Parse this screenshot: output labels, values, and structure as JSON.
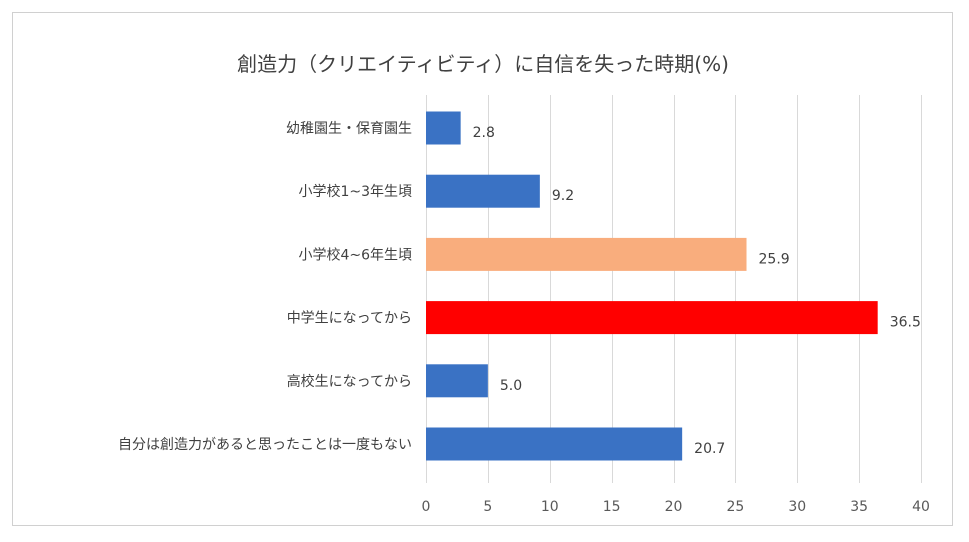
{
  "chart_data": {
    "type": "bar",
    "orientation": "horizontal",
    "title": "創造力（クリエイティビティ）に自信を失った時期(%)",
    "categories": [
      "幼稚園生・保育園生",
      "小学校1~3年生頃",
      "小学校4~6年生頃",
      "中学生になってから",
      "高校生になってから",
      "自分は創造力があると思ったことは一度もない"
    ],
    "values": [
      2.8,
      9.2,
      25.9,
      36.5,
      5.0,
      20.7
    ],
    "value_labels": [
      "2.8",
      "9.2",
      "25.9",
      "36.5",
      "5.0",
      "20.7"
    ],
    "bar_colors": [
      "#3a72c4",
      "#3a72c4",
      "#f9ad7d",
      "#ff0000",
      "#3a72c4",
      "#3a72c4"
    ],
    "xlim": [
      0,
      40
    ],
    "x_ticks": [
      0,
      5,
      10,
      15,
      20,
      25,
      30,
      35,
      40
    ],
    "grid": "vertical",
    "legend": "none"
  }
}
